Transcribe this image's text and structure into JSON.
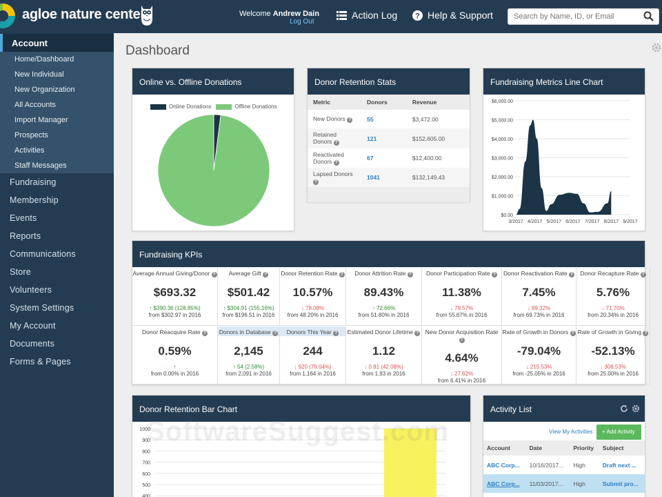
{
  "header": {
    "brand": "agloe nature center",
    "welcome_prefix": "Welcome",
    "user_name": "Andrew Dain",
    "logout": "Log Out",
    "action_log": "Action Log",
    "help": "Help & Support",
    "search_placeholder": "Search by Name, ID, or Email"
  },
  "sidebar": {
    "account": "Account",
    "subitems": [
      "Home/Dashboard",
      "New Individual",
      "New Organization",
      "All Accounts",
      "Import Manager",
      "Prospects",
      "Activities",
      "Staff Messages"
    ],
    "items": [
      "Fundraising",
      "Membership",
      "Events",
      "Reports",
      "Communications",
      "Store",
      "Volunteers",
      "System Settings",
      "My Account",
      "Documents",
      "Forms & Pages"
    ]
  },
  "page_title": "Dashboard",
  "donations_card": {
    "title": "Online vs. Offline Donations",
    "legend": [
      "Online Donations",
      "Offline Donations"
    ],
    "colors": {
      "online": "#1b3446",
      "offline": "#7cc97a"
    },
    "online_fraction": 0.02
  },
  "retention_card": {
    "title": "Donor Retention Stats",
    "headers": [
      "Metric",
      "Donors",
      "Revenue"
    ],
    "rows": [
      {
        "metric": "New Donors",
        "donors": "55",
        "revenue": "$3,472.00"
      },
      {
        "metric": "Retained Donors",
        "donors": "121",
        "revenue": "$152,605.00"
      },
      {
        "metric": "Reactivated Donors",
        "donors": "67",
        "revenue": "$12,400.00"
      },
      {
        "metric": "Lapsed Donors",
        "donors": "1041",
        "revenue": "$132,149.43"
      }
    ]
  },
  "line_card": {
    "title": "Fundraising Metrics Line Chart"
  },
  "chart_data": [
    {
      "type": "pie",
      "labels": [
        "Online Donations",
        "Offline Donations"
      ],
      "values": [
        2,
        98
      ]
    },
    {
      "type": "area",
      "x": [
        "3/2017",
        "4/2017",
        "5/2017",
        "6/2017",
        "7/2017",
        "8/2017",
        "9/2017"
      ],
      "yticks": [
        "$0.00",
        "$1,000.00",
        "$2,000.00",
        "$3,000.00",
        "$4,000.00",
        "$5,000.00",
        "$6,000.00"
      ],
      "ylim": [
        0,
        6000
      ],
      "points": [
        [
          3.0,
          0
        ],
        [
          3.2,
          300
        ],
        [
          3.5,
          2800
        ],
        [
          3.75,
          4700
        ],
        [
          3.9,
          5000
        ],
        [
          4.1,
          4000
        ],
        [
          4.35,
          1400
        ],
        [
          4.6,
          200
        ],
        [
          4.85,
          550
        ],
        [
          5.3,
          1050
        ],
        [
          5.8,
          1150
        ],
        [
          6.2,
          1100
        ],
        [
          6.55,
          600
        ],
        [
          6.9,
          120
        ],
        [
          7.3,
          150
        ],
        [
          7.8,
          600
        ],
        [
          8.0,
          1250
        ]
      ],
      "color": "#1b3446"
    },
    {
      "type": "bar",
      "yticks": [
        "1000",
        "900",
        "800",
        "700",
        "600",
        "500",
        "400"
      ],
      "ylim": [
        400,
        1000
      ],
      "values": [
        1000
      ],
      "color": "#f7f25e"
    }
  ],
  "kpi_card": {
    "title": "Fundraising KPIs",
    "items": [
      {
        "title": "Average Annual Giving/Donor",
        "value": "$693.32",
        "change": "$390.36 (128.85%)",
        "dir": "up",
        "from": "from $302.97 in 2016"
      },
      {
        "title": "Average Gift",
        "value": "$501.42",
        "change": "$304.91 (155.16%)",
        "dir": "up",
        "from": "from $196.51 in 2016"
      },
      {
        "title": "Donor Retention Rate",
        "value": "10.57%",
        "change": "78.08%",
        "dir": "down",
        "from": "from 48.20% in 2016"
      },
      {
        "title": "Donor Attrition Rate",
        "value": "89.43%",
        "change": "72.66%",
        "dir": "up",
        "from": "from 51.80% in 2016"
      },
      {
        "title": "Donor Participation Rate",
        "value": "11.38%",
        "change": "79.57%",
        "dir": "down",
        "from": "from 55.67% in 2016"
      },
      {
        "title": "Donor Reactivation Rate",
        "value": "7.45%",
        "change": "89.32%",
        "dir": "down",
        "from": "from 69.73% in 2016"
      },
      {
        "title": "Donor Recapture Rate",
        "value": "5.76%",
        "change": "71.70%",
        "dir": "down",
        "from": "from 20.34% in 2016"
      },
      {
        "title": "Donor Reacquire Rate",
        "value": "0.59%",
        "change": "",
        "dir": "up",
        "from": "from 0.00% in 2016"
      },
      {
        "title": "Donors in Database",
        "value": "2,145",
        "change": "54 (2.58%)",
        "dir": "up",
        "from": "from 2,091 in 2016",
        "highlight": true
      },
      {
        "title": "Donors This Year",
        "value": "244",
        "change": "920 (79.04%)",
        "dir": "down",
        "from": "from 1,164 in 2016",
        "highlight": true
      },
      {
        "title": "Estimated Donor Lifetime",
        "value": "1.12",
        "change": "0.81 (42.08%)",
        "dir": "down",
        "from": "from 1.93 in 2016"
      },
      {
        "title": "New Donor Acquisition Rate",
        "value": "4.64%",
        "change": "27.62%",
        "dir": "down",
        "from": "from 6.41% in 2016"
      },
      {
        "title": "Rate of Growth in Donors",
        "value": "-79.04%",
        "change": "215.53%",
        "dir": "down",
        "from": "from -25.05% in 2016"
      },
      {
        "title": "Rate of Growth in Giving",
        "value": "-52.13%",
        "change": "308.53%",
        "dir": "down",
        "from": "from 25.00% in 2016"
      }
    ]
  },
  "bar_card": {
    "title": "Donor Retention Bar Chart",
    "watermark": "SoftwareSuggest.com"
  },
  "activity_card": {
    "title": "Activity List",
    "view_my": "View My Activities",
    "add": "Add Activity",
    "headers": [
      "Account",
      "Date",
      "Priority",
      "Subject"
    ],
    "rows": [
      {
        "account": "ABC Corp...",
        "date": "10/16/2017...",
        "priority": "High",
        "subject": "Draft next ..."
      },
      {
        "account": "ABC Corp...",
        "date": "11/03/2017...",
        "priority": "High",
        "subject": "Submit pro..."
      }
    ]
  }
}
